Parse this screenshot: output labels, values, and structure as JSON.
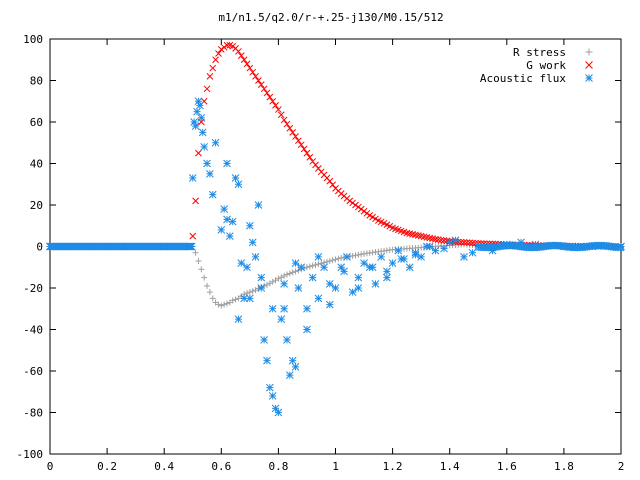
{
  "chart_data": {
    "type": "scatter",
    "title": "m1/n1.5/q2.0/r-+.25-j130/M0.15/512",
    "xlabel": "",
    "ylabel": "",
    "xlim": [
      0,
      2
    ],
    "ylim": [
      -100,
      100
    ],
    "x_ticks": [
      "0",
      "0.2",
      "0.4",
      "0.6",
      "0.8",
      "1",
      "1.2",
      "1.4",
      "1.6",
      "1.8",
      "2"
    ],
    "y_ticks": [
      "100",
      "80",
      "60",
      "40",
      "20",
      "0",
      "-20",
      "-40",
      "-60",
      "-80",
      "-100"
    ],
    "grid": false,
    "legend_position": "top-right",
    "series": [
      {
        "name": "R stress",
        "marker": "plus",
        "color": "#a0a0a0",
        "x": [
          0.0,
          0.1,
          0.2,
          0.3,
          0.4,
          0.48,
          0.5,
          0.51,
          0.52,
          0.53,
          0.54,
          0.55,
          0.56,
          0.57,
          0.58,
          0.59,
          0.6,
          0.61,
          0.62,
          0.63,
          0.64,
          0.65,
          0.66,
          0.67,
          0.68,
          0.7,
          0.72,
          0.74,
          0.76,
          0.78,
          0.8,
          0.83,
          0.86,
          0.9,
          0.94,
          0.98,
          1.02,
          1.06,
          1.1,
          1.15,
          1.2,
          1.25,
          1.3,
          1.35,
          1.4,
          1.45,
          1.5,
          1.6,
          1.7,
          1.8,
          1.9,
          2.0
        ],
        "y": [
          0,
          0,
          0,
          0,
          0,
          0,
          0,
          -3,
          -7,
          -11,
          -15,
          -19,
          -22,
          -25,
          -27,
          -28,
          -28.5,
          -28,
          -27.5,
          -27,
          -26,
          -25.5,
          -25,
          -24,
          -23,
          -22,
          -21,
          -19.5,
          -18.5,
          -17,
          -15.5,
          -13.5,
          -12,
          -10,
          -8.5,
          -7,
          -5.5,
          -4.5,
          -3.5,
          -2.5,
          -1.5,
          -1,
          -0.5,
          0,
          0.5,
          1,
          0.5,
          0.3,
          0.2,
          0.1,
          0,
          0
        ]
      },
      {
        "name": "G work",
        "marker": "cross",
        "color": "#ff0000",
        "x": [
          0.0,
          0.2,
          0.4,
          0.49,
          0.5,
          0.51,
          0.52,
          0.53,
          0.54,
          0.55,
          0.56,
          0.57,
          0.58,
          0.59,
          0.6,
          0.61,
          0.62,
          0.63,
          0.64,
          0.65,
          0.66,
          0.67,
          0.68,
          0.7,
          0.72,
          0.74,
          0.76,
          0.78,
          0.8,
          0.82,
          0.84,
          0.86,
          0.88,
          0.9,
          0.92,
          0.95,
          0.98,
          1.0,
          1.02,
          1.05,
          1.08,
          1.1,
          1.12,
          1.15,
          1.18,
          1.2,
          1.25,
          1.3,
          1.35,
          1.4,
          1.45,
          1.5,
          1.6,
          1.7,
          1.8,
          1.9,
          2.0
        ],
        "y": [
          0,
          0,
          0,
          0,
          5,
          22,
          45,
          60,
          70,
          76,
          82,
          86,
          90,
          93,
          95,
          96,
          97,
          97,
          96.5,
          95.5,
          94,
          92,
          90,
          86,
          82,
          78,
          74,
          70,
          66,
          61,
          57,
          53,
          49,
          45,
          41,
          36,
          31.5,
          28,
          25.5,
          22,
          19,
          17,
          15,
          12.5,
          10.5,
          9,
          6.5,
          5,
          3.5,
          2.5,
          2,
          1.5,
          1,
          0.5,
          0.3,
          0.1,
          0
        ]
      },
      {
        "name": "Acoustic flux",
        "marker": "star",
        "color": "#1e8ce6",
        "x": [
          0.0,
          0.05,
          0.1,
          0.15,
          0.2,
          0.25,
          0.3,
          0.35,
          0.4,
          0.45,
          0.49,
          0.5,
          0.505,
          0.51,
          0.515,
          0.52,
          0.525,
          0.53,
          0.535,
          0.54,
          0.55,
          0.56,
          0.57,
          0.58,
          0.6,
          0.61,
          0.62,
          0.63,
          0.64,
          0.65,
          0.66,
          0.67,
          0.68,
          0.69,
          0.7,
          0.71,
          0.72,
          0.73,
          0.74,
          0.75,
          0.76,
          0.77,
          0.78,
          0.79,
          0.8,
          0.81,
          0.82,
          0.83,
          0.84,
          0.85,
          0.86,
          0.87,
          0.88,
          0.9,
          0.92,
          0.94,
          0.96,
          0.98,
          1.0,
          1.02,
          1.04,
          1.06,
          1.08,
          1.1,
          1.12,
          1.14,
          1.16,
          1.18,
          1.2,
          1.22,
          1.24,
          1.26,
          1.28,
          1.3,
          1.32,
          1.35,
          1.38,
          1.4,
          1.42,
          1.45,
          1.48,
          1.5,
          1.55,
          1.6,
          1.65,
          1.7,
          1.8,
          1.9,
          2.0,
          0.62,
          0.66,
          0.7,
          0.74,
          0.78,
          0.82,
          0.86,
          0.9,
          0.94,
          0.98,
          1.03,
          1.08,
          1.13,
          1.18,
          1.23,
          1.28,
          1.33
        ],
        "y": [
          0,
          0,
          0,
          0,
          0,
          0,
          0,
          0,
          0,
          0,
          0,
          33,
          60,
          58,
          65,
          70,
          68,
          62,
          55,
          48,
          40,
          35,
          25,
          50,
          8,
          18,
          40,
          5,
          12,
          33,
          30,
          -8,
          -25,
          -10,
          10,
          2,
          -5,
          20,
          -20,
          -45,
          -55,
          -68,
          -72,
          -78,
          -80,
          -35,
          -30,
          -45,
          -62,
          -55,
          -58,
          -20,
          -10,
          -30,
          -15,
          -25,
          -10,
          -18,
          -20,
          -10,
          -5,
          -22,
          -15,
          -8,
          -10,
          -18,
          -5,
          -12,
          -8,
          -2,
          -6,
          -10,
          -3,
          -5,
          0,
          -2,
          -1,
          2,
          3,
          -5,
          -3,
          0,
          -2,
          1,
          2,
          1,
          0,
          0,
          0,
          13,
          -35,
          -25,
          -15,
          -30,
          -18,
          -8,
          -40,
          -5,
          -28,
          -12,
          -20,
          -10,
          -15,
          -6,
          -4,
          0
        ]
      }
    ]
  }
}
